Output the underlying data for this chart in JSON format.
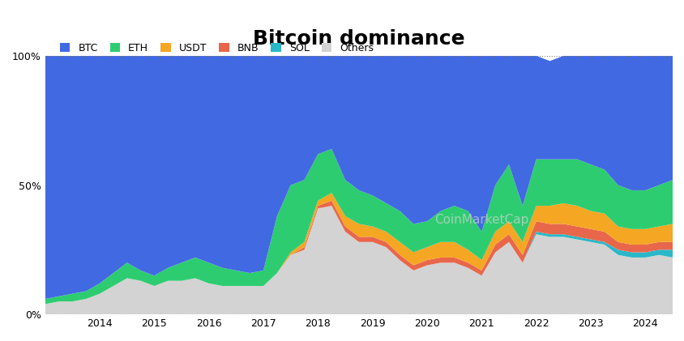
{
  "title": "Bitcoin dominance",
  "title_fontsize": 18,
  "legend_labels": [
    "BTC",
    "ETH",
    "USDT",
    "BNB",
    "SOL",
    "Others"
  ],
  "colors": {
    "BTC": "#4169e1",
    "ETH": "#2ecc71",
    "USDT": "#f5a623",
    "BNB": "#e8674a",
    "SOL": "#2ab8c8",
    "Others": "#d3d3d3"
  },
  "legend_colors": [
    "#4169e1",
    "#2ecc71",
    "#f5a623",
    "#e8674a",
    "#2ab8c8",
    "#d3d3d3"
  ],
  "yticks": [
    0,
    50,
    100
  ],
  "ytick_labels": [
    "0%",
    "50%",
    "100%"
  ],
  "background_color": "#ffffff",
  "years": [
    2013.0,
    2013.25,
    2013.5,
    2013.75,
    2014.0,
    2014.25,
    2014.5,
    2014.75,
    2015.0,
    2015.25,
    2015.5,
    2015.75,
    2016.0,
    2016.25,
    2016.5,
    2016.75,
    2017.0,
    2017.25,
    2017.5,
    2017.75,
    2018.0,
    2018.25,
    2018.5,
    2018.75,
    2019.0,
    2019.25,
    2019.5,
    2019.75,
    2020.0,
    2020.25,
    2020.5,
    2020.75,
    2021.0,
    2021.25,
    2021.5,
    2021.75,
    2022.0,
    2022.25,
    2022.5,
    2022.75,
    2023.0,
    2023.25,
    2023.5,
    2023.75,
    2024.0,
    2024.25,
    2024.5
  ],
  "btc": [
    94,
    93,
    92,
    91,
    88,
    84,
    80,
    83,
    85,
    82,
    80,
    78,
    80,
    82,
    83,
    84,
    83,
    62,
    50,
    48,
    38,
    36,
    48,
    52,
    54,
    57,
    60,
    65,
    64,
    60,
    58,
    60,
    68,
    50,
    42,
    58,
    40,
    38,
    40,
    40,
    42,
    44,
    50,
    52,
    52,
    50,
    48
  ],
  "eth": [
    2,
    2,
    3,
    3,
    4,
    5,
    6,
    4,
    4,
    5,
    7,
    8,
    8,
    7,
    6,
    5,
    6,
    22,
    26,
    24,
    18,
    17,
    14,
    13,
    12,
    11,
    12,
    11,
    10,
    12,
    14,
    15,
    11,
    18,
    22,
    14,
    18,
    18,
    17,
    18,
    18,
    17,
    16,
    15,
    15,
    16,
    17
  ],
  "usdt": [
    0,
    0,
    0,
    0,
    0,
    0,
    0,
    0,
    0,
    0,
    0,
    0,
    0,
    0,
    0,
    0,
    0,
    0,
    1,
    2,
    2,
    3,
    4,
    5,
    4,
    4,
    5,
    5,
    5,
    6,
    6,
    5,
    4,
    5,
    5,
    5,
    6,
    7,
    8,
    8,
    7,
    7,
    6,
    6,
    6,
    6,
    7
  ],
  "bnb": [
    0,
    0,
    0,
    0,
    0,
    0,
    0,
    0,
    0,
    0,
    0,
    0,
    0,
    0,
    0,
    0,
    0,
    0,
    0,
    1,
    1,
    2,
    2,
    2,
    2,
    2,
    2,
    2,
    2,
    2,
    2,
    2,
    2,
    3,
    3,
    3,
    4,
    4,
    4,
    4,
    4,
    4,
    3,
    3,
    3,
    3,
    3
  ],
  "sol": [
    0,
    0,
    0,
    0,
    0,
    0,
    0,
    0,
    0,
    0,
    0,
    0,
    0,
    0,
    0,
    0,
    0,
    0,
    0,
    0,
    0,
    0,
    0,
    0,
    0,
    0,
    0,
    0,
    0,
    0,
    0,
    0,
    0,
    0,
    0,
    0,
    1,
    1,
    1,
    1,
    1,
    1,
    2,
    2,
    2,
    2,
    3
  ],
  "others": [
    4,
    5,
    5,
    6,
    8,
    11,
    14,
    13,
    11,
    13,
    13,
    14,
    12,
    11,
    11,
    11,
    11,
    16,
    23,
    25,
    41,
    42,
    32,
    28,
    28,
    26,
    21,
    17,
    19,
    20,
    20,
    18,
    15,
    24,
    28,
    20,
    31,
    30,
    30,
    29,
    28,
    27,
    23,
    22,
    22,
    23,
    22
  ]
}
